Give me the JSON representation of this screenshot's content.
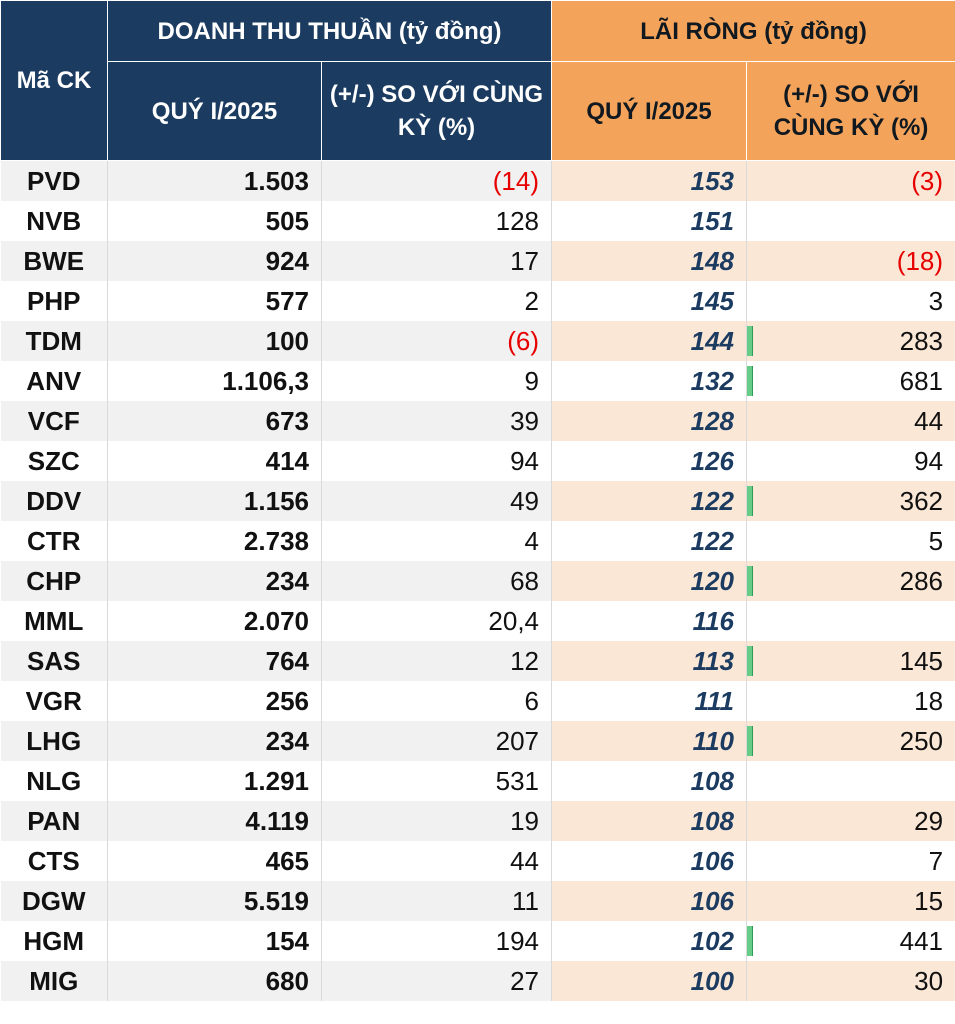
{
  "header": {
    "code_label": "Mã CK",
    "revenue_group": "DOANH THU THUẦN (tỷ đồng)",
    "profit_group": "LÃI RÒNG (tỷ đồng)",
    "q_label": "QUÝ I/2025",
    "yoy_label": "(+/-) SO VỚI CÙNG KỲ (%)"
  },
  "colors": {
    "navy": "#1b3b60",
    "orange": "#f4a35b",
    "negative": "#e60000",
    "databar": "#66cc88"
  },
  "rows": [
    {
      "code": "PVD",
      "revenue": "1.503",
      "rev_change": "(14)",
      "profit": "153",
      "profit_change": "(3)"
    },
    {
      "code": "NVB",
      "revenue": "505",
      "rev_change": "128",
      "profit": "151",
      "profit_change": ""
    },
    {
      "code": "BWE",
      "revenue": "924",
      "rev_change": "17",
      "profit": "148",
      "profit_change": "(18)"
    },
    {
      "code": "PHP",
      "revenue": "577",
      "rev_change": "2",
      "profit": "145",
      "profit_change": "3"
    },
    {
      "code": "TDM",
      "revenue": "100",
      "rev_change": "(6)",
      "profit": "144",
      "profit_change": "283"
    },
    {
      "code": "ANV",
      "revenue": "1.106,3",
      "rev_change": "9",
      "profit": "132",
      "profit_change": "681"
    },
    {
      "code": "VCF",
      "revenue": "673",
      "rev_change": "39",
      "profit": "128",
      "profit_change": "44"
    },
    {
      "code": "SZC",
      "revenue": "414",
      "rev_change": "94",
      "profit": "126",
      "profit_change": "94"
    },
    {
      "code": "DDV",
      "revenue": "1.156",
      "rev_change": "49",
      "profit": "122",
      "profit_change": "362"
    },
    {
      "code": "CTR",
      "revenue": "2.738",
      "rev_change": "4",
      "profit": "122",
      "profit_change": "5"
    },
    {
      "code": "CHP",
      "revenue": "234",
      "rev_change": "68",
      "profit": "120",
      "profit_change": "286"
    },
    {
      "code": "MML",
      "revenue": "2.070",
      "rev_change": "20,4",
      "profit": "116",
      "profit_change": ""
    },
    {
      "code": "SAS",
      "revenue": "764",
      "rev_change": "12",
      "profit": "113",
      "profit_change": "145"
    },
    {
      "code": "VGR",
      "revenue": "256",
      "rev_change": "6",
      "profit": "111",
      "profit_change": "18"
    },
    {
      "code": "LHG",
      "revenue": "234",
      "rev_change": "207",
      "profit": "110",
      "profit_change": "250"
    },
    {
      "code": "NLG",
      "revenue": "1.291",
      "rev_change": "531",
      "profit": "108",
      "profit_change": ""
    },
    {
      "code": "PAN",
      "revenue": "4.119",
      "rev_change": "19",
      "profit": "108",
      "profit_change": "29"
    },
    {
      "code": "CTS",
      "revenue": "465",
      "rev_change": "44",
      "profit": "106",
      "profit_change": "7"
    },
    {
      "code": "DGW",
      "revenue": "5.519",
      "rev_change": "11",
      "profit": "106",
      "profit_change": "15"
    },
    {
      "code": "HGM",
      "revenue": "154",
      "rev_change": "194",
      "profit": "102",
      "profit_change": "441"
    },
    {
      "code": "MIG",
      "revenue": "680",
      "rev_change": "27",
      "profit": "100",
      "profit_change": "30"
    }
  ]
}
